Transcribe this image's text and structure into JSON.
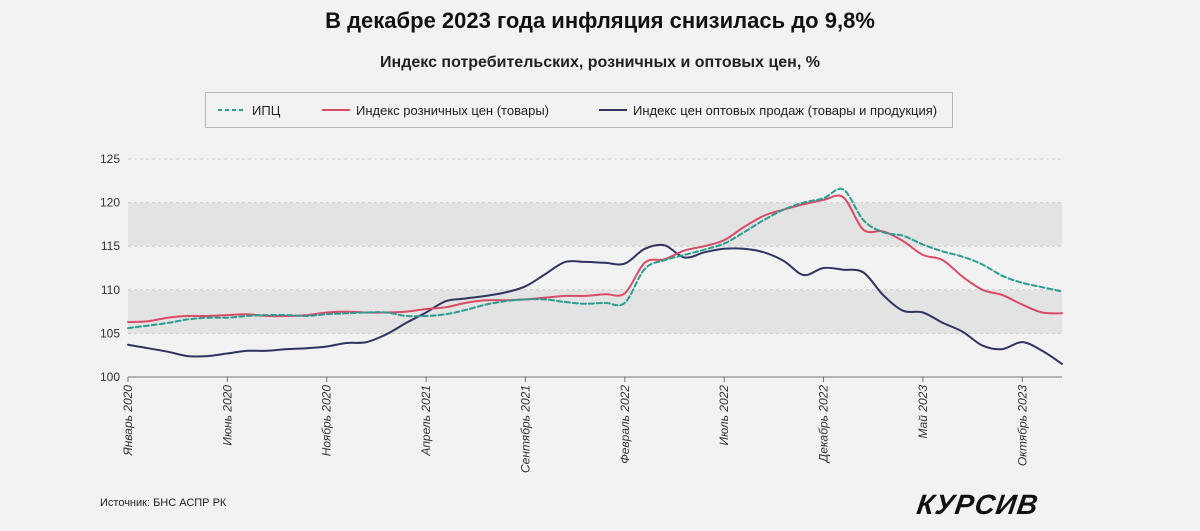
{
  "title": "В декабре 2023 года инфляция снизилась до 9,8%",
  "subtitle": "Индекс потребительских, розничных и оптовых цен, %",
  "source": "Источник: БНС АСПР РК",
  "logo_text": "КУРСИВ",
  "legend": {
    "cpi": "ИПЦ",
    "retail": "Индекс розничных цен (товары)",
    "wholesale": "Индекс цен оптовых продаж (товары и продукция)"
  },
  "colors": {
    "cpi": "#2a9d8f",
    "retail": "#d94b66",
    "wholesale": "#2f3560",
    "band_dark": "#e3e3e3",
    "band_light": "#f2f2f2",
    "grid": "#c9c9c9",
    "axis": "#777777"
  },
  "chart_data": {
    "type": "line",
    "title": "В декабре 2023 года инфляция снизилась до 9,8%",
    "subtitle": "Индекс потребительских, розничных и оптовых цен, %",
    "ylim": [
      100,
      125
    ],
    "yticks": [
      100,
      105,
      110,
      115,
      120,
      125
    ],
    "xlim": [
      0,
      47
    ],
    "xticks": [
      {
        "i": 0,
        "label": "Январь 2020"
      },
      {
        "i": 5,
        "label": "Июнь 2020"
      },
      {
        "i": 10,
        "label": "Ноябрь 2020"
      },
      {
        "i": 15,
        "label": "Апрель 2021"
      },
      {
        "i": 20,
        "label": "Сентябрь 2021"
      },
      {
        "i": 25,
        "label": "Февраль 2022"
      },
      {
        "i": 30,
        "label": "Июль 2022"
      },
      {
        "i": 35,
        "label": "Декабрь 2022"
      },
      {
        "i": 40,
        "label": "Май 2023"
      },
      {
        "i": 45,
        "label": "Октябрь 2023"
      }
    ],
    "x_start": "Январь 2020",
    "x_end": "Декабрь 2023",
    "legend_position": "top",
    "series": [
      {
        "key": "cpi",
        "name": "ИПЦ",
        "style": "dashed",
        "values": [
          105.6,
          105.9,
          106.2,
          106.6,
          106.8,
          106.8,
          107.0,
          107.1,
          107.1,
          107.0,
          107.2,
          107.3,
          107.4,
          107.4,
          107.0,
          107.0,
          107.2,
          107.7,
          108.3,
          108.7,
          108.9,
          108.9,
          108.6,
          108.4,
          108.5,
          108.5,
          112.4,
          113.4,
          114.0,
          114.6,
          115.3,
          116.6,
          118.0,
          119.2,
          120.0,
          120.5,
          121.5,
          118.0,
          116.6,
          116.2,
          115.2,
          114.4,
          113.8,
          112.9,
          111.6,
          110.8,
          110.3,
          109.8
        ]
      },
      {
        "key": "retail",
        "name": "Индекс розничных цен (товары)",
        "style": "solid",
        "values": [
          106.3,
          106.4,
          106.8,
          107.0,
          107.0,
          107.1,
          107.2,
          107.0,
          107.0,
          107.1,
          107.4,
          107.5,
          107.4,
          107.4,
          107.5,
          107.8,
          108.0,
          108.5,
          108.8,
          108.8,
          108.9,
          109.1,
          109.3,
          109.3,
          109.5,
          109.6,
          113.1,
          113.5,
          114.5,
          115.0,
          115.7,
          117.2,
          118.5,
          119.2,
          119.8,
          120.3,
          120.6,
          116.9,
          116.7,
          115.6,
          114.0,
          113.4,
          111.5,
          110.0,
          109.4,
          108.3,
          107.4,
          107.3
        ]
      },
      {
        "key": "wholesale",
        "name": "Индекс цен оптовых продаж (товары и продукция)",
        "style": "solid",
        "values": [
          103.7,
          103.3,
          102.9,
          102.4,
          102.4,
          102.7,
          103.0,
          103.0,
          103.2,
          103.3,
          103.5,
          103.9,
          104.0,
          104.9,
          106.2,
          107.4,
          108.7,
          109.0,
          109.3,
          109.7,
          110.4,
          111.8,
          113.2,
          113.2,
          113.1,
          113.0,
          114.7,
          115.1,
          113.7,
          114.3,
          114.7,
          114.7,
          114.3,
          113.3,
          111.7,
          112.5,
          112.3,
          112.0,
          109.4,
          107.6,
          107.4,
          106.2,
          105.2,
          103.6,
          103.2,
          104.0,
          103.0,
          101.5
        ]
      }
    ]
  }
}
